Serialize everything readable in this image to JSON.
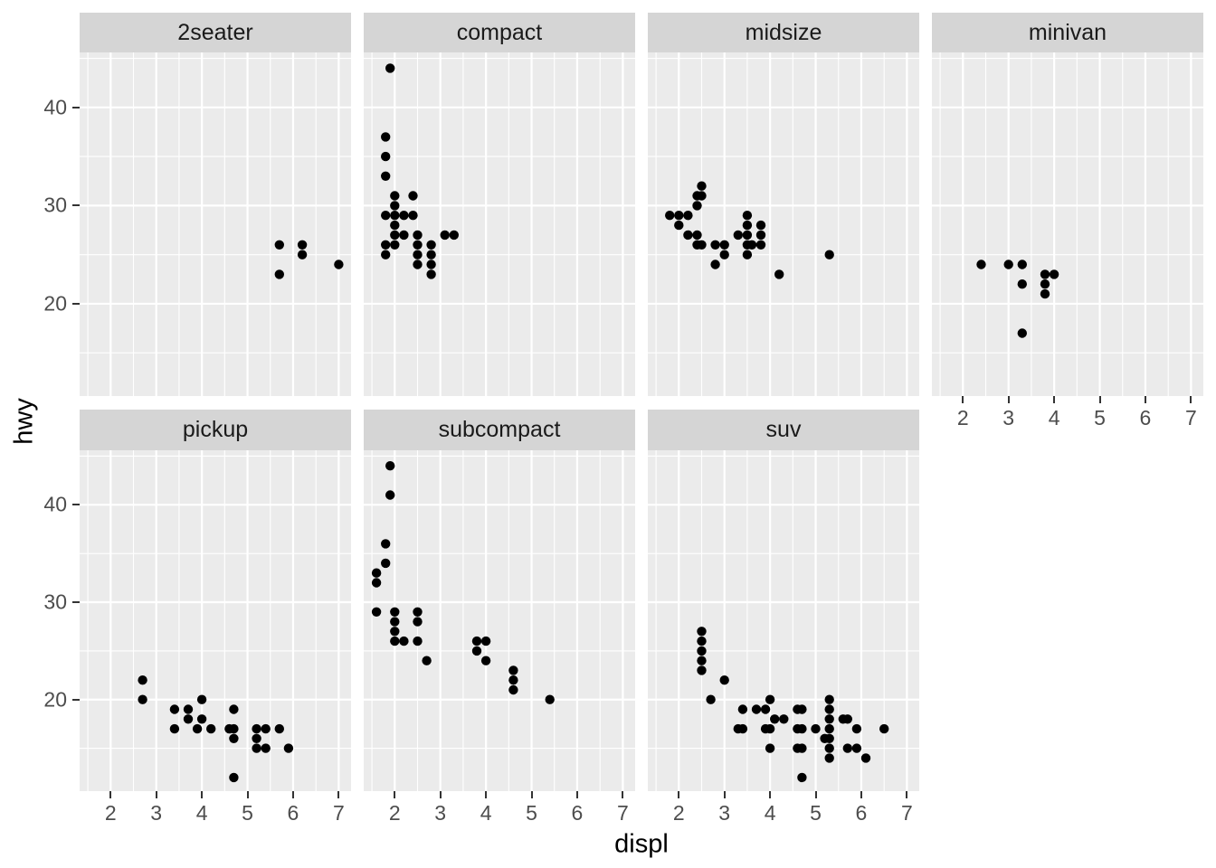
{
  "chart_data": {
    "type": "scatter",
    "title": "",
    "xlabel": "displ",
    "ylabel": "hwy",
    "x_ticks": [
      2,
      3,
      4,
      5,
      6,
      7
    ],
    "y_ticks": [
      20,
      30,
      40
    ],
    "x_minor": [
      1.5,
      2.5,
      3.5,
      4.5,
      5.5,
      6.5
    ],
    "y_minor": [
      15,
      25,
      35,
      45
    ],
    "xlim": [
      1.32,
      7.27
    ],
    "ylim": [
      10.6,
      45.6
    ],
    "grid": true,
    "legend": "none",
    "point_color": "#000000",
    "facet_layout": {
      "rows": 2,
      "cols": 4,
      "shared_axes": true
    },
    "facets": [
      {
        "label": "2seater",
        "points": [
          [
            5.7,
            26
          ],
          [
            5.7,
            23
          ],
          [
            6.2,
            26
          ],
          [
            6.2,
            25
          ],
          [
            7.0,
            24
          ]
        ]
      },
      {
        "label": "compact",
        "points": [
          [
            1.9,
            44
          ],
          [
            1.8,
            37
          ],
          [
            1.8,
            35
          ],
          [
            1.8,
            33
          ],
          [
            2.0,
            31
          ],
          [
            2.4,
            31
          ],
          [
            2.0,
            30
          ],
          [
            1.8,
            29
          ],
          [
            2.0,
            29
          ],
          [
            2.2,
            29
          ],
          [
            2.4,
            29
          ],
          [
            2.0,
            28
          ],
          [
            2.0,
            27
          ],
          [
            2.2,
            27
          ],
          [
            2.5,
            27
          ],
          [
            3.1,
            27
          ],
          [
            3.3,
            27
          ],
          [
            1.8,
            26
          ],
          [
            2.0,
            26
          ],
          [
            2.5,
            26
          ],
          [
            2.8,
            26
          ],
          [
            1.8,
            25
          ],
          [
            2.5,
            25
          ],
          [
            2.8,
            25
          ],
          [
            2.5,
            24
          ],
          [
            2.8,
            24
          ],
          [
            2.8,
            23
          ]
        ]
      },
      {
        "label": "midsize",
        "points": [
          [
            1.8,
            29
          ],
          [
            2.0,
            29
          ],
          [
            2.2,
            29
          ],
          [
            2.0,
            28
          ],
          [
            2.4,
            31
          ],
          [
            2.4,
            30
          ],
          [
            2.5,
            32
          ],
          [
            2.5,
            31
          ],
          [
            2.2,
            27
          ],
          [
            2.4,
            27
          ],
          [
            2.4,
            26
          ],
          [
            2.5,
            26
          ],
          [
            2.8,
            26
          ],
          [
            3.0,
            26
          ],
          [
            3.0,
            25
          ],
          [
            2.8,
            24
          ],
          [
            3.3,
            27
          ],
          [
            3.5,
            29
          ],
          [
            3.5,
            28
          ],
          [
            3.5,
            27
          ],
          [
            3.5,
            26
          ],
          [
            3.5,
            25
          ],
          [
            3.6,
            26
          ],
          [
            3.8,
            28
          ],
          [
            3.8,
            27
          ],
          [
            3.8,
            26
          ],
          [
            4.2,
            23
          ],
          [
            5.3,
            25
          ]
        ]
      },
      {
        "label": "minivan",
        "points": [
          [
            2.4,
            24
          ],
          [
            3.0,
            24
          ],
          [
            3.3,
            24
          ],
          [
            3.3,
            22
          ],
          [
            3.3,
            17
          ],
          [
            3.8,
            23
          ],
          [
            3.8,
            22
          ],
          [
            3.8,
            21
          ],
          [
            4.0,
            23
          ]
        ]
      },
      {
        "label": "pickup",
        "points": [
          [
            2.7,
            22
          ],
          [
            2.7,
            20
          ],
          [
            3.4,
            19
          ],
          [
            3.4,
            17
          ],
          [
            3.7,
            19
          ],
          [
            3.7,
            18
          ],
          [
            3.9,
            17
          ],
          [
            4.0,
            20
          ],
          [
            4.0,
            18
          ],
          [
            4.2,
            17
          ],
          [
            4.6,
            17
          ],
          [
            4.7,
            19
          ],
          [
            4.7,
            17
          ],
          [
            4.7,
            16
          ],
          [
            4.7,
            12
          ],
          [
            5.2,
            17
          ],
          [
            5.2,
            16
          ],
          [
            5.2,
            15
          ],
          [
            5.4,
            17
          ],
          [
            5.4,
            15
          ],
          [
            5.7,
            17
          ],
          [
            5.9,
            15
          ]
        ]
      },
      {
        "label": "subcompact",
        "points": [
          [
            1.6,
            33
          ],
          [
            1.6,
            32
          ],
          [
            1.6,
            29
          ],
          [
            1.8,
            36
          ],
          [
            1.8,
            34
          ],
          [
            1.9,
            44
          ],
          [
            1.9,
            41
          ],
          [
            2.0,
            29
          ],
          [
            2.0,
            28
          ],
          [
            2.0,
            27
          ],
          [
            2.0,
            26
          ],
          [
            2.2,
            26
          ],
          [
            2.5,
            29
          ],
          [
            2.5,
            28
          ],
          [
            2.5,
            26
          ],
          [
            2.7,
            24
          ],
          [
            3.8,
            26
          ],
          [
            3.8,
            25
          ],
          [
            4.0,
            26
          ],
          [
            4.0,
            24
          ],
          [
            4.6,
            23
          ],
          [
            4.6,
            22
          ],
          [
            4.6,
            21
          ],
          [
            5.4,
            20
          ]
        ]
      },
      {
        "label": "suv",
        "points": [
          [
            2.5,
            27
          ],
          [
            2.5,
            26
          ],
          [
            2.5,
            25
          ],
          [
            2.5,
            24
          ],
          [
            2.5,
            23
          ],
          [
            2.7,
            20
          ],
          [
            3.0,
            22
          ],
          [
            3.3,
            17
          ],
          [
            3.4,
            19
          ],
          [
            3.4,
            17
          ],
          [
            3.7,
            19
          ],
          [
            3.9,
            19
          ],
          [
            3.9,
            17
          ],
          [
            4.0,
            20
          ],
          [
            4.0,
            17
          ],
          [
            4.0,
            15
          ],
          [
            4.1,
            18
          ],
          [
            4.3,
            18
          ],
          [
            4.6,
            19
          ],
          [
            4.7,
            19
          ],
          [
            4.6,
            17
          ],
          [
            4.7,
            17
          ],
          [
            4.6,
            15
          ],
          [
            4.7,
            15
          ],
          [
            4.7,
            12
          ],
          [
            5.0,
            17
          ],
          [
            5.2,
            16
          ],
          [
            5.3,
            20
          ],
          [
            5.3,
            19
          ],
          [
            5.3,
            18
          ],
          [
            5.3,
            17
          ],
          [
            5.3,
            16
          ],
          [
            5.3,
            15
          ],
          [
            5.3,
            14
          ],
          [
            5.6,
            18
          ],
          [
            5.7,
            18
          ],
          [
            5.7,
            15
          ],
          [
            5.9,
            17
          ],
          [
            5.9,
            15
          ],
          [
            6.1,
            14
          ],
          [
            6.5,
            17
          ]
        ]
      }
    ]
  },
  "colors": {
    "background": "#ffffff",
    "panel_background": "#ebebeb",
    "strip_background": "#d5d5d5",
    "grid_line": "#ffffff",
    "point": "#000000",
    "tick_label": "#4d4d4d",
    "axis_title": "#000000",
    "strip_text": "#1a1a1a",
    "tick_mark": "#333333"
  }
}
